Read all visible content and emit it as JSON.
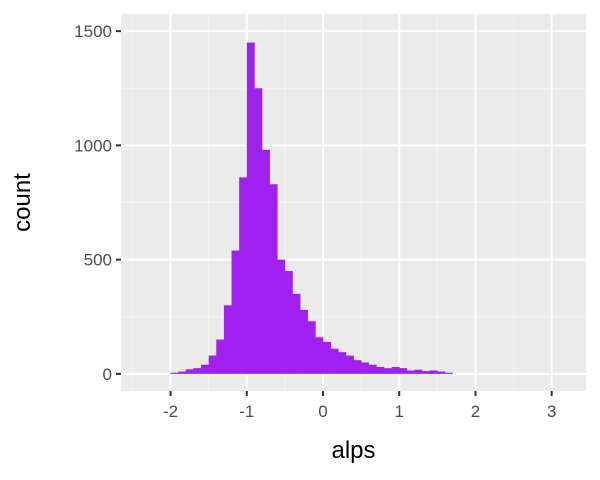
{
  "chart_data": {
    "type": "bar",
    "title": "",
    "xlabel": "alps",
    "ylabel": "count",
    "xlim": [
      -2.65,
      3.45
    ],
    "ylim": [
      -75,
      1575
    ],
    "x_ticks": [
      -2,
      -1,
      0,
      1,
      2,
      3
    ],
    "x_tick_labels": [
      "-2",
      "-1",
      "0",
      "1",
      "2",
      "3"
    ],
    "y_ticks": [
      0,
      500,
      1000,
      1500
    ],
    "y_tick_labels": [
      "0",
      "500",
      "1000",
      "1500"
    ],
    "grid": true,
    "legend": "none",
    "bin_width": 0.1,
    "bins": [
      {
        "x_start": -2.0,
        "count": 5
      },
      {
        "x_start": -1.9,
        "count": 10
      },
      {
        "x_start": -1.8,
        "count": 20
      },
      {
        "x_start": -1.7,
        "count": 25
      },
      {
        "x_start": -1.6,
        "count": 40
      },
      {
        "x_start": -1.5,
        "count": 80
      },
      {
        "x_start": -1.4,
        "count": 150
      },
      {
        "x_start": -1.3,
        "count": 300
      },
      {
        "x_start": -1.2,
        "count": 540
      },
      {
        "x_start": -1.1,
        "count": 860
      },
      {
        "x_start": -1.0,
        "count": 1450
      },
      {
        "x_start": -0.9,
        "count": 1250
      },
      {
        "x_start": -0.8,
        "count": 980
      },
      {
        "x_start": -0.7,
        "count": 830
      },
      {
        "x_start": -0.6,
        "count": 500
      },
      {
        "x_start": -0.5,
        "count": 450
      },
      {
        "x_start": -0.4,
        "count": 350
      },
      {
        "x_start": -0.3,
        "count": 280
      },
      {
        "x_start": -0.2,
        "count": 230
      },
      {
        "x_start": -0.1,
        "count": 160
      },
      {
        "x_start": 0.0,
        "count": 140
      },
      {
        "x_start": 0.1,
        "count": 110
      },
      {
        "x_start": 0.2,
        "count": 95
      },
      {
        "x_start": 0.3,
        "count": 80
      },
      {
        "x_start": 0.4,
        "count": 60
      },
      {
        "x_start": 0.5,
        "count": 50
      },
      {
        "x_start": 0.6,
        "count": 40
      },
      {
        "x_start": 0.7,
        "count": 30
      },
      {
        "x_start": 0.8,
        "count": 25
      },
      {
        "x_start": 0.9,
        "count": 30
      },
      {
        "x_start": 1.0,
        "count": 25
      },
      {
        "x_start": 1.1,
        "count": 15
      },
      {
        "x_start": 1.2,
        "count": 18
      },
      {
        "x_start": 1.3,
        "count": 12
      },
      {
        "x_start": 1.4,
        "count": 15
      },
      {
        "x_start": 1.5,
        "count": 10
      },
      {
        "x_start": 1.6,
        "count": 5
      }
    ],
    "colors": {
      "bar_fill": "#a020f0",
      "panel_background": "#ebebeb",
      "grid_major": "#ffffff",
      "grid_minor": "#f5f5f5",
      "tick_text": "#4d4d4d",
      "axis_title": "#000000"
    }
  }
}
